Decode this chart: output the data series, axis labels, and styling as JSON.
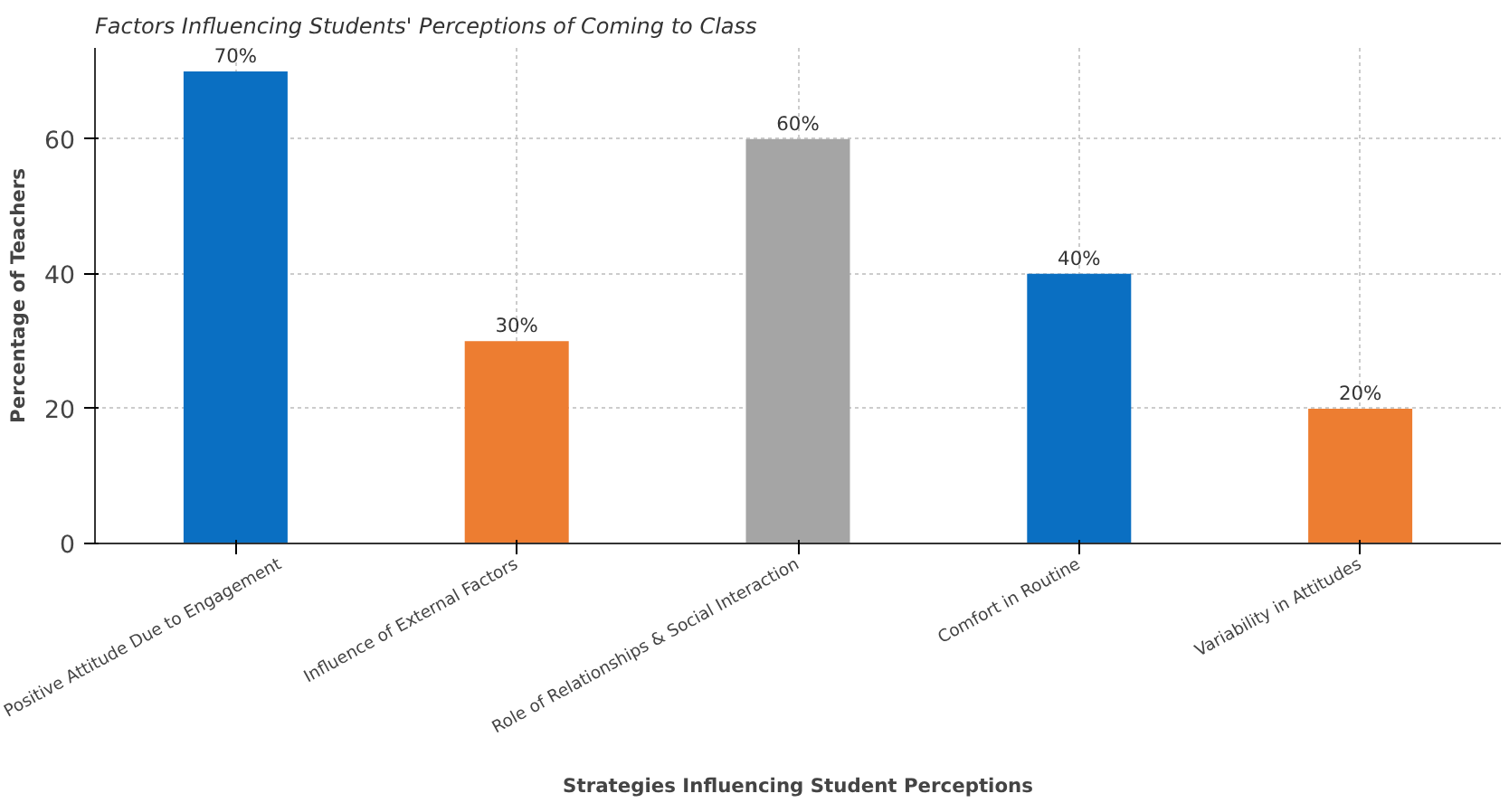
{
  "chart_data": {
    "type": "bar",
    "title": "Factors Influencing Students' Perceptions of Coming to Class",
    "xlabel": "Strategies Influencing Student Perceptions",
    "ylabel": "Percentage of Teachers",
    "categories": [
      "Positive Attitude Due to Engagement",
      "Influence of External Factors",
      "Role of Relationships & Social Interaction",
      "Comfort in Routine",
      "Variability in Attitudes"
    ],
    "values": [
      70,
      30,
      60,
      40,
      20
    ],
    "colors": [
      "#0a6fc2",
      "#ed7d31",
      "#a5a5a5",
      "#0a6fc2",
      "#ed7d31"
    ],
    "value_labels": [
      "70%",
      "30%",
      "60%",
      "40%",
      "20%"
    ],
    "ylim": [
      0,
      73.5
    ],
    "yticks": [
      0,
      20,
      40,
      60
    ],
    "grid": true
  }
}
